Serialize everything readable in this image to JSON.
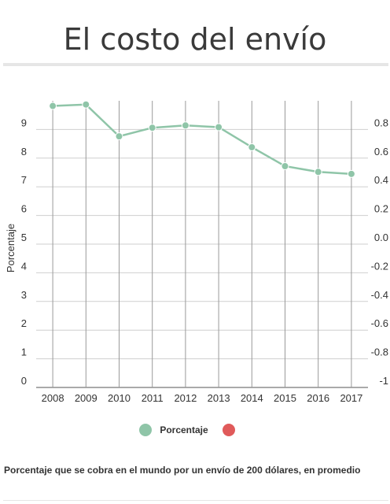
{
  "title": "El costo del envío",
  "caption": "Porcentaje que se cobra en el mundo por un envío de 200 dólares, en promedio",
  "legend": [
    {
      "label": "Porcentaje",
      "color": "#8fc5a8"
    },
    {
      "label": "",
      "color": "#e05a5a"
    }
  ],
  "chart_data": {
    "type": "line",
    "title": "El costo del envío",
    "ylabel": "Porcentaje",
    "x": [
      "2008",
      "2009",
      "2010",
      "2011",
      "2012",
      "2013",
      "2014",
      "2015",
      "2016",
      "2017"
    ],
    "series": [
      {
        "name": "Porcentaje",
        "color": "#8fc5a8",
        "values": [
          9.82,
          9.87,
          8.76,
          9.06,
          9.14,
          9.08,
          8.38,
          7.72,
          7.52,
          7.45
        ]
      }
    ],
    "ylim": [
      0,
      10
    ],
    "yticks": [
      "0",
      "1",
      "2",
      "3",
      "4",
      "5",
      "6",
      "7",
      "8",
      "9"
    ],
    "y2ticks": [
      "-1",
      "-0.8",
      "-0.6",
      "-0.4",
      "-0.2",
      "0.0",
      "0.2",
      "0.4",
      "0.6",
      "0.8"
    ],
    "grid": true
  }
}
